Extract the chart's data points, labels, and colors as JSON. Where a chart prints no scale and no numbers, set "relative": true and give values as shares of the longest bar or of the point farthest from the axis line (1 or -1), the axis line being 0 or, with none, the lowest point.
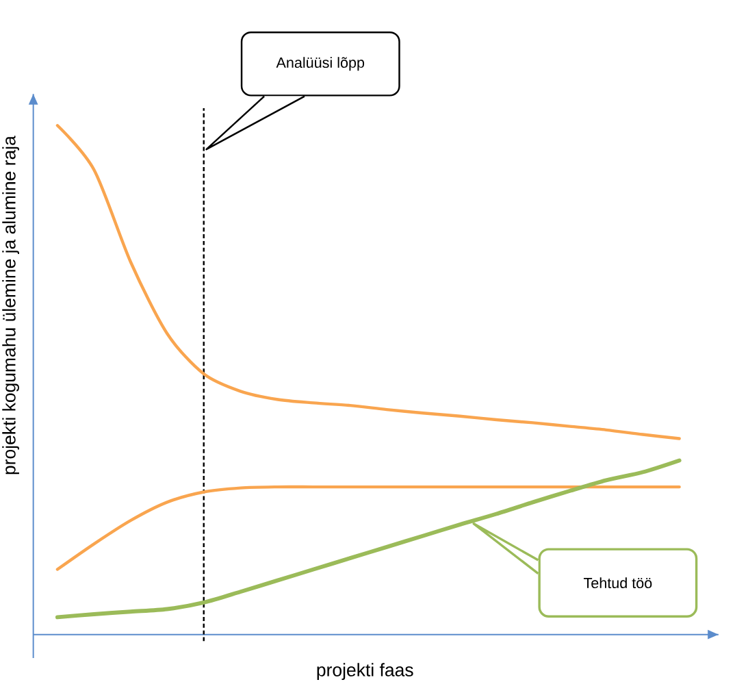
{
  "chart_data": {
    "type": "line",
    "relative": true,
    "xlabel": "projekti faas",
    "ylabel": "projekti kogumahu ülemine ja alumine raja",
    "categories": [
      null,
      null,
      null,
      null,
      null,
      null,
      null,
      null,
      null,
      null,
      null,
      null,
      null,
      null,
      null,
      null,
      null,
      null
    ],
    "series": [
      {
        "color": "#f9a54f",
        "values": [
          1,
          0.913,
          0.732,
          0.591,
          0.512,
          0.478,
          0.462,
          0.455,
          0.45,
          0.442,
          0.435,
          0.429,
          0.422,
          0.416,
          0.409,
          0.402,
          0.393,
          0.385
        ]
      },
      {
        "color": "#f9a54f",
        "values": [
          0.128,
          0.178,
          0.224,
          0.26,
          0.28,
          0.288,
          0.29,
          0.29,
          0.29,
          0.29,
          0.29,
          0.29,
          0.29,
          0.29,
          0.29,
          0.29,
          0.29,
          0.29
        ]
      },
      {
        "name": "Tehtud töö",
        "color": "#9bbb59",
        "values": [
          0.034,
          0.04,
          0.045,
          0.05,
          0.063,
          0.084,
          0.106,
          0.128,
          0.15,
          0.172,
          0.194,
          0.216,
          0.237,
          0.26,
          0.282,
          0.303,
          0.319,
          0.342
        ]
      }
    ],
    "annotations": [
      "Analüüsi lõpp"
    ]
  }
}
